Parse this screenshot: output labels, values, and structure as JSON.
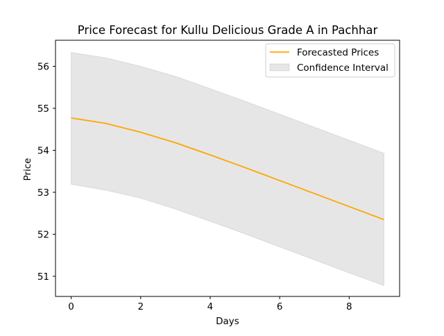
{
  "chart_data": {
    "type": "line",
    "title": "Price Forecast for Kullu Delicious Grade A in Pachhar",
    "xlabel": "Days",
    "ylabel": "Price",
    "x": [
      0,
      1,
      2,
      3,
      4,
      5,
      6,
      7,
      8,
      9
    ],
    "xlim": [
      -0.45,
      9.45
    ],
    "ylim": [
      50.52,
      56.62
    ],
    "xticks": [
      0,
      2,
      4,
      6,
      8
    ],
    "yticks": [
      51,
      52,
      53,
      54,
      55,
      56
    ],
    "grid": false,
    "legend_position": "upper right",
    "series": [
      {
        "name": "Forecasted Prices",
        "color": "#ffa500",
        "values": [
          54.77,
          54.64,
          54.43,
          54.18,
          53.89,
          53.59,
          53.28,
          52.97,
          52.66,
          52.35
        ]
      },
      {
        "name": "Confidence Interval",
        "color": "#e6e6e6",
        "type": "area",
        "lower": [
          53.19,
          53.05,
          52.86,
          52.6,
          52.31,
          52.01,
          51.7,
          51.39,
          51.08,
          50.78
        ],
        "upper": [
          56.33,
          56.2,
          56.0,
          55.76,
          55.47,
          55.17,
          54.86,
          54.55,
          54.24,
          53.93
        ]
      }
    ]
  }
}
